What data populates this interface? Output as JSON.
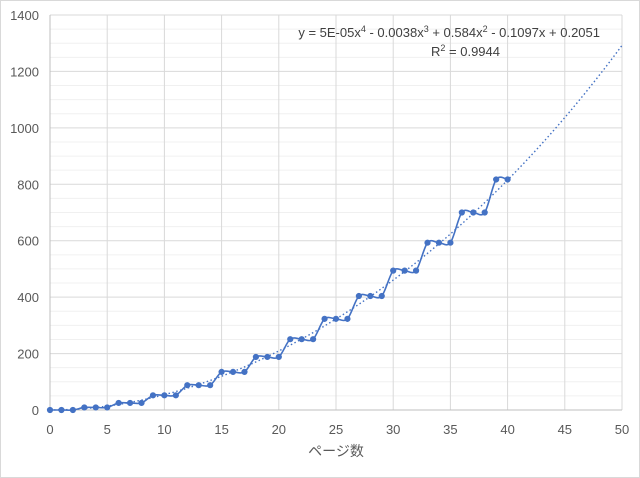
{
  "chart_data": {
    "type": "scatter",
    "title": "",
    "xlabel": "ページ数",
    "ylabel": "",
    "xlim": [
      0,
      50
    ],
    "ylim": [
      0,
      1400
    ],
    "x_ticks": [
      0,
      5,
      10,
      15,
      20,
      25,
      30,
      35,
      40,
      45,
      50
    ],
    "y_ticks": [
      0,
      200,
      400,
      600,
      800,
      1000,
      1200,
      1400
    ],
    "grid": "horizontal major and minor gridlines, vertical major gridlines",
    "legend": "none",
    "series": [
      {
        "color": "#4472c4",
        "marker": "circle",
        "line": "smooth",
        "x": [
          0,
          1,
          2,
          3,
          4,
          5,
          6,
          7,
          8,
          9,
          10,
          11,
          12,
          13,
          14,
          15,
          16,
          17,
          18,
          19,
          20,
          21,
          22,
          23,
          24,
          25,
          26,
          27,
          28,
          29,
          30,
          31,
          32,
          33,
          34,
          35,
          36,
          37,
          38,
          39,
          40
        ],
        "y": [
          0,
          0,
          0,
          9,
          9,
          9,
          25,
          25,
          25,
          52,
          52,
          52,
          88,
          88,
          88,
          135,
          135,
          135,
          188,
          188,
          188,
          251,
          251,
          251,
          323,
          323,
          323,
          404,
          404,
          404,
          494,
          494,
          494,
          593,
          593,
          593,
          700,
          700,
          700,
          817,
          817
        ]
      }
    ],
    "trendline": {
      "type": "polynomial order 4",
      "style": "dotted",
      "color": "#4472c4",
      "coefficients": [
        5e-05,
        -0.0038,
        0.584,
        -0.1097,
        0.2051
      ],
      "x_range": [
        0,
        50
      ],
      "equation_line1_parts": [
        "y = 5E-05x",
        "4",
        " - 0.0038x",
        "3",
        " + 0.584x",
        "2",
        " - 0.1097x + 0.2051"
      ],
      "equation_line2_parts": [
        "R",
        "2",
        " = 0.9944"
      ]
    }
  }
}
